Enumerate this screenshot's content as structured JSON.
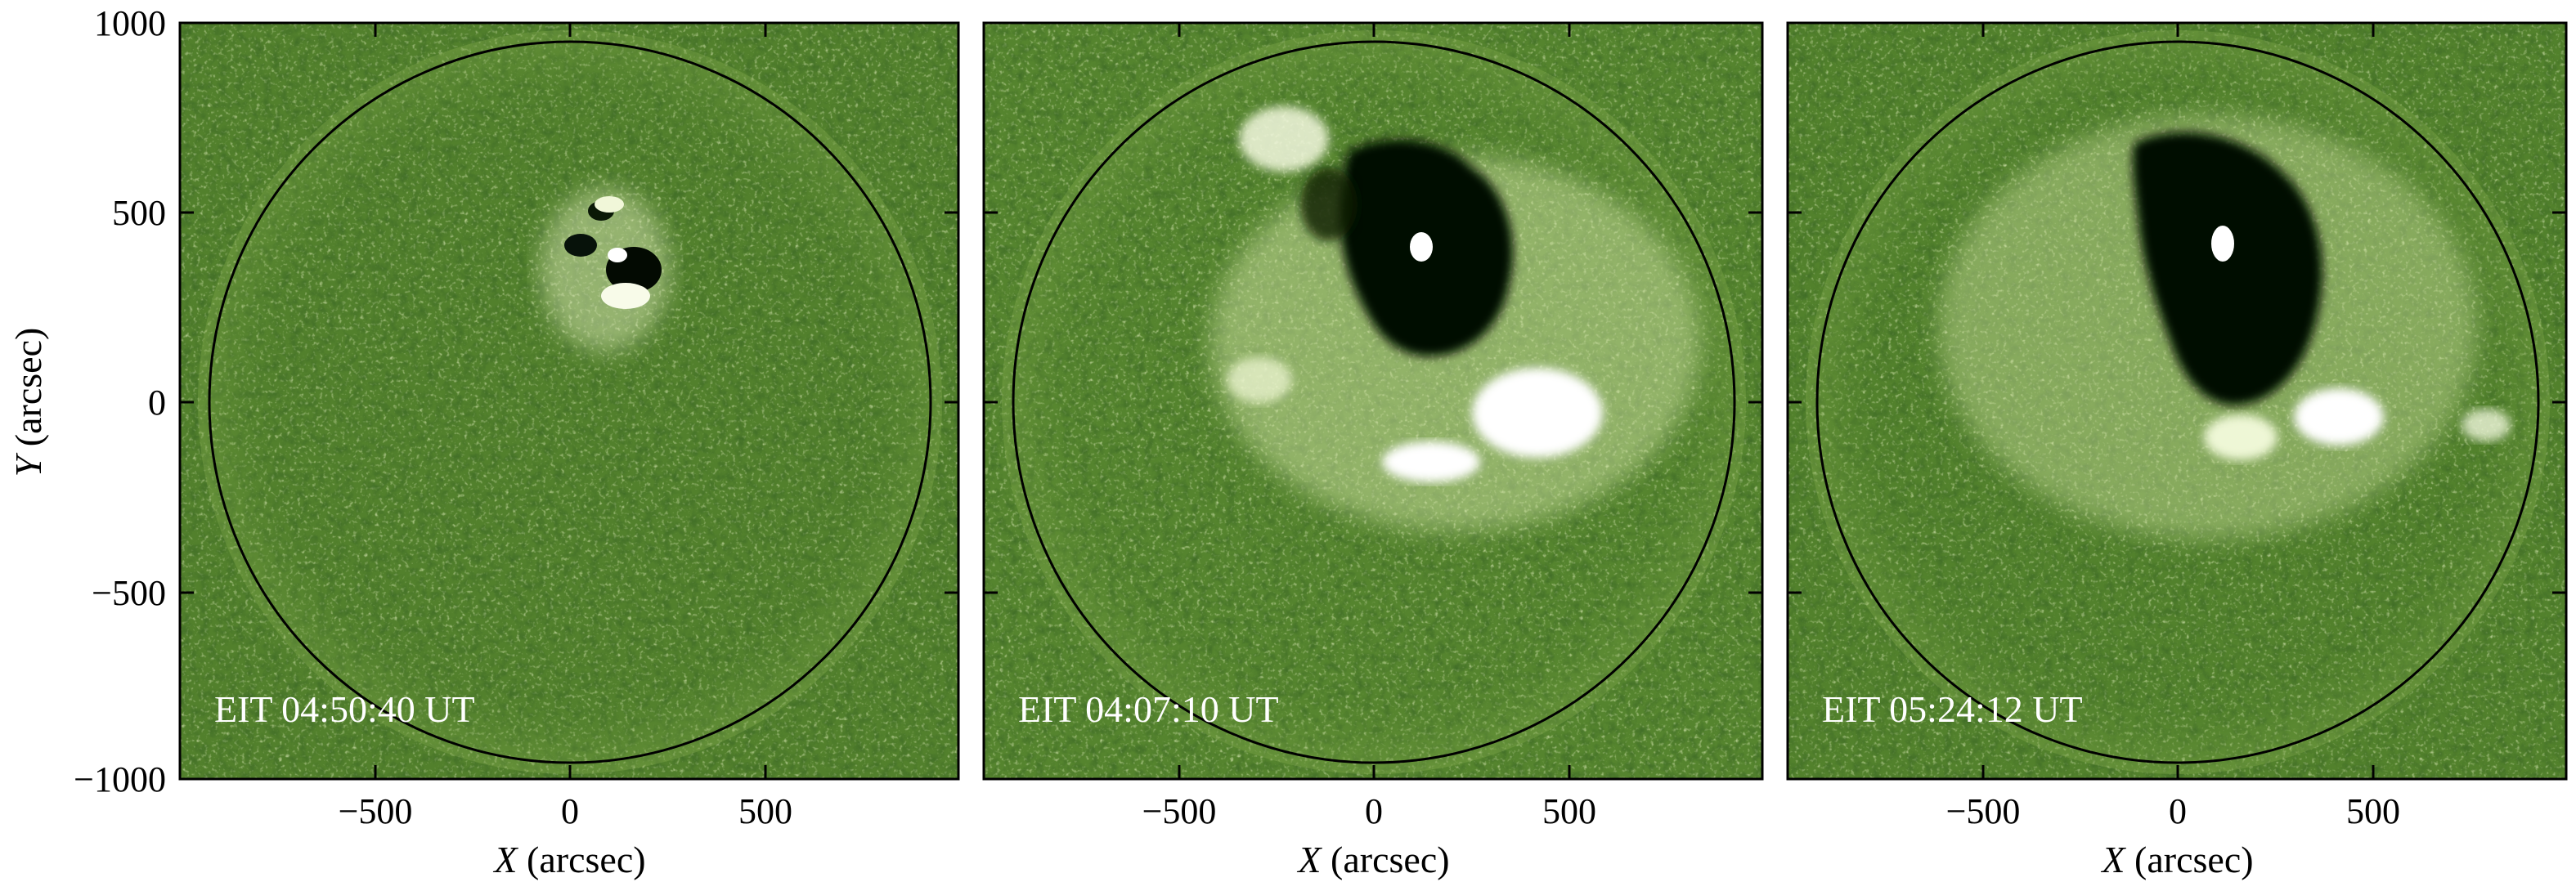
{
  "figure": {
    "panels": [
      {
        "timestamp": "EIT 04:50:40 UT"
      },
      {
        "timestamp": "EIT 04:07:10 UT"
      },
      {
        "timestamp": "EIT 05:24:12 UT"
      }
    ],
    "x_axis": {
      "label_italic": "X",
      "label_rest": " (arcsec)",
      "ticks": [
        "−500",
        "0",
        "500"
      ]
    },
    "y_axis": {
      "label_italic": "Y",
      "label_rest": " (arcsec)",
      "ticks": [
        "1000",
        "500",
        "0",
        "−500",
        "−1000"
      ]
    },
    "colors": {
      "background_green": "#52802c",
      "dimming_dark": "#050f02",
      "brightening": "#f4f8e2",
      "limb_circle": "#000000"
    }
  }
}
